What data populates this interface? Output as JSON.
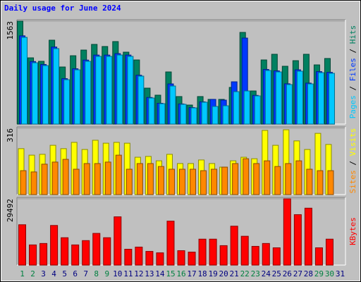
{
  "title": "Daily usage for June 2024",
  "chart_data": [
    {
      "type": "bar",
      "ylim": [
        0,
        1563
      ],
      "yticks": [
        1563
      ],
      "legend_separator": " / ",
      "series": [
        {
          "name": "Pages",
          "color": "#00c8ff",
          "values": [
            1317,
            931,
            888,
            1146,
            674,
            824,
            953,
            1028,
            1028,
            1049,
            1028,
            728,
            396,
            310,
            578,
            300,
            246,
            332,
            268,
            278,
            492,
            503,
            428,
            814,
            792,
            600,
            803,
            610,
            781,
            771,
            0
          ]
        },
        {
          "name": "Files",
          "color": "#0038ff",
          "values": [
            1340,
            950,
            905,
            1170,
            690,
            840,
            972,
            1048,
            1048,
            1070,
            1048,
            742,
            404,
            316,
            610,
            306,
            251,
            338,
            375,
            364,
            642,
            1306,
            436,
            830,
            808,
            612,
            824,
            622,
            797,
            786,
            0
          ]
        },
        {
          "name": "Hits",
          "color": "#008060",
          "values": [
            1563,
            1006,
            953,
            1274,
            867,
            1038,
            1124,
            1210,
            1178,
            1253,
            1092,
            974,
            546,
            439,
            792,
            418,
            289,
            418,
            375,
            375,
            557,
            1392,
            503,
            974,
            1060,
            878,
            963,
            1060,
            899,
            996,
            0
          ]
        }
      ]
    },
    {
      "type": "bar",
      "ylim": [
        0,
        316
      ],
      "yticks": [
        316
      ],
      "legend_separator": " / ",
      "series": [
        {
          "name": "Sites",
          "color": "#ff8800",
          "values": [
            114,
            108,
            145,
            155,
            168,
            121,
            148,
            148,
            155,
            188,
            121,
            148,
            148,
            134,
            121,
            121,
            121,
            114,
            121,
            131,
            148,
            171,
            148,
            161,
            134,
            148,
            161,
            121,
            114,
            114,
            0
          ]
        },
        {
          "name": "Visits",
          "color": "#ffff00",
          "values": [
            219,
            188,
            192,
            235,
            219,
            249,
            215,
            259,
            245,
            249,
            245,
            178,
            182,
            161,
            192,
            148,
            148,
            165,
            148,
            131,
            161,
            178,
            171,
            306,
            235,
            309,
            256,
            215,
            292,
            239,
            0
          ]
        }
      ]
    },
    {
      "type": "bar",
      "ylim": [
        0,
        29492
      ],
      "yticks": [
        29492
      ],
      "legend_separator": " / ",
      "series": [
        {
          "name": "KBytes",
          "color": "#ff0000",
          "values": [
            17954,
            8977,
            9618,
            17633,
            12183,
            8977,
            10900,
            14106,
            12183,
            21480,
            7053,
            8015,
            6091,
            5450,
            19557,
            6412,
            5771,
            11542,
            11542,
            8656,
            17312,
            12824,
            8336,
            9618,
            7694,
            29492,
            22442,
            25327,
            7694,
            11542,
            0
          ]
        }
      ],
      "categories": [
        "1",
        "2",
        "3",
        "4",
        "5",
        "6",
        "7",
        "8",
        "9",
        "10",
        "11",
        "12",
        "13",
        "14",
        "15",
        "16",
        "17",
        "18",
        "19",
        "20",
        "21",
        "22",
        "23",
        "24",
        "25",
        "26",
        "27",
        "28",
        "29",
        "30",
        "31"
      ],
      "category_colors": [
        "#008040",
        "#008040",
        "#000080",
        "#000080",
        "#000080",
        "#000080",
        "#000080",
        "#008040",
        "#008040",
        "#000080",
        "#000080",
        "#000080",
        "#000080",
        "#000080",
        "#008040",
        "#008040",
        "#000080",
        "#000080",
        "#000080",
        "#000080",
        "#000080",
        "#008040",
        "#008040",
        "#000080",
        "#000080",
        "#000080",
        "#000080",
        "#000080",
        "#008040",
        "#008040",
        "#000080"
      ]
    }
  ]
}
